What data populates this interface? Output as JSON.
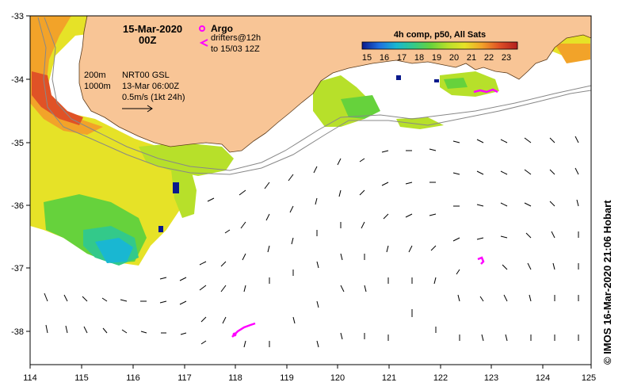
{
  "map": {
    "date": "15-Mar-2020",
    "time": "00Z",
    "legend_argo": "Argo",
    "legend_drifters_1": "drifters@12h",
    "legend_drifters_2": "to 15/03 12Z",
    "isobath_1": "200m",
    "isobath_2": "1000m",
    "product": "NRT00 GSL",
    "product_date": "13-Mar 06:00Z",
    "scale_label": "0.5m/s (1kt 24h)",
    "colorbar_title": "4h comp, p50, All Sats",
    "colorbar_ticks": [
      "15",
      "16",
      "17",
      "18",
      "19",
      "20",
      "21",
      "22",
      "23"
    ],
    "x_ticks": [
      "114",
      "115",
      "116",
      "117",
      "118",
      "119",
      "120",
      "121",
      "122",
      "123",
      "124",
      "125"
    ],
    "y_ticks": [
      "-33",
      "-34",
      "-35",
      "-36",
      "-37",
      "-38"
    ],
    "credit": "© IMOS 16-Mar-2020 21:06 Hobart",
    "colors": {
      "land": "#F8C596",
      "drifter": "#FF00FF",
      "colorbar": [
        "#0A1A8C",
        "#1F6FE0",
        "#19B7D2",
        "#33C98A",
        "#66D23C",
        "#B7E02A",
        "#E6E227",
        "#F2A329",
        "#E05226",
        "#B21E1E"
      ]
    }
  }
}
